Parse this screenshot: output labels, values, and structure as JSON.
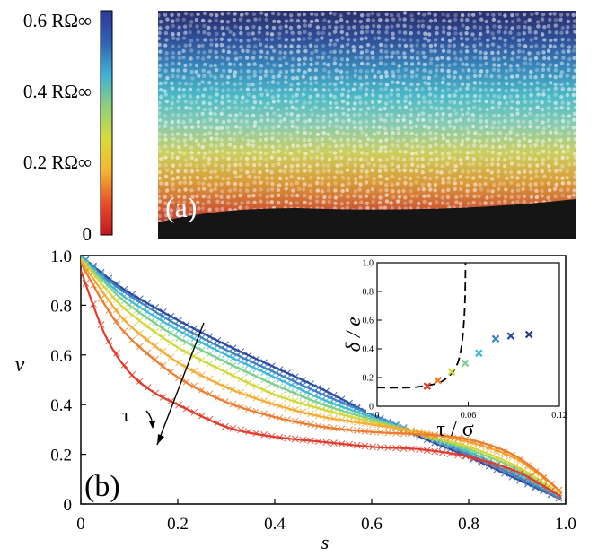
{
  "colorbar": {
    "labels": [
      "0.6 RΩ∞",
      "0.4 RΩ∞",
      "0.2 RΩ∞",
      "0"
    ],
    "stops": [
      "#2c3a98",
      "#2f63b5",
      "#3fb1d6",
      "#8fd07a",
      "#d8dc3a",
      "#f5b530",
      "#e8502a",
      "#c4161c"
    ]
  },
  "photo": {
    "panel_label": "(a)",
    "band_colors": [
      "#2a2f6e",
      "#2f52a0",
      "#3a8fc4",
      "#4fc2cf",
      "#8fd5b8",
      "#d6d862",
      "#e3a33a",
      "#d65a34",
      "#b52a2a"
    ]
  },
  "chart_data": [
    {
      "type": "line",
      "panel_label": "(b)",
      "xlabel": "s",
      "ylabel": "v",
      "xlim": [
        0,
        1
      ],
      "ylim": [
        0,
        1
      ],
      "xticks": [
        "0",
        "0.2",
        "0.4",
        "0.6",
        "0.8",
        "1.0"
      ],
      "yticks": [
        "0",
        "0.2",
        "0.4",
        "0.6",
        "0.8",
        "1.0"
      ],
      "arrow_label": "τ",
      "series": [
        {
          "color": "#2b4a9b",
          "points": [
            [
              0,
              1
            ],
            [
              0.05,
              0.92
            ],
            [
              0.1,
              0.85
            ],
            [
              0.2,
              0.74
            ],
            [
              0.3,
              0.64
            ],
            [
              0.4,
              0.55
            ],
            [
              0.5,
              0.46
            ],
            [
              0.6,
              0.36
            ],
            [
              0.7,
              0.27
            ],
            [
              0.8,
              0.19
            ],
            [
              0.9,
              0.1
            ],
            [
              0.99,
              0.02
            ]
          ]
        },
        {
          "color": "#3f7fc4",
          "points": [
            [
              0,
              1
            ],
            [
              0.05,
              0.91
            ],
            [
              0.1,
              0.84
            ],
            [
              0.2,
              0.72
            ],
            [
              0.3,
              0.62
            ],
            [
              0.4,
              0.53
            ],
            [
              0.5,
              0.44
            ],
            [
              0.6,
              0.36
            ],
            [
              0.7,
              0.28
            ],
            [
              0.8,
              0.2
            ],
            [
              0.9,
              0.11
            ],
            [
              0.99,
              0.02
            ]
          ]
        },
        {
          "color": "#40b8d8",
          "points": [
            [
              0,
              1
            ],
            [
              0.05,
              0.9
            ],
            [
              0.1,
              0.82
            ],
            [
              0.2,
              0.7
            ],
            [
              0.3,
              0.6
            ],
            [
              0.4,
              0.51
            ],
            [
              0.5,
              0.42
            ],
            [
              0.6,
              0.35
            ],
            [
              0.7,
              0.28
            ],
            [
              0.8,
              0.21
            ],
            [
              0.9,
              0.12
            ],
            [
              0.99,
              0.03
            ]
          ]
        },
        {
          "color": "#7ccf8a",
          "points": [
            [
              0,
              0.99
            ],
            [
              0.05,
              0.89
            ],
            [
              0.1,
              0.8
            ],
            [
              0.2,
              0.67
            ],
            [
              0.3,
              0.57
            ],
            [
              0.4,
              0.48
            ],
            [
              0.5,
              0.4
            ],
            [
              0.6,
              0.34
            ],
            [
              0.7,
              0.28
            ],
            [
              0.8,
              0.22
            ],
            [
              0.9,
              0.14
            ],
            [
              0.99,
              0.03
            ]
          ]
        },
        {
          "color": "#d2d83c",
          "points": [
            [
              0,
              0.99
            ],
            [
              0.05,
              0.87
            ],
            [
              0.1,
              0.77
            ],
            [
              0.2,
              0.63
            ],
            [
              0.3,
              0.53
            ],
            [
              0.4,
              0.44
            ],
            [
              0.5,
              0.38
            ],
            [
              0.6,
              0.33
            ],
            [
              0.7,
              0.28
            ],
            [
              0.8,
              0.23
            ],
            [
              0.9,
              0.15
            ],
            [
              0.99,
              0.04
            ]
          ]
        },
        {
          "color": "#f4ac34",
          "points": [
            [
              0,
              0.98
            ],
            [
              0.05,
              0.84
            ],
            [
              0.1,
              0.72
            ],
            [
              0.2,
              0.57
            ],
            [
              0.3,
              0.47
            ],
            [
              0.4,
              0.4
            ],
            [
              0.5,
              0.35
            ],
            [
              0.6,
              0.32
            ],
            [
              0.7,
              0.29
            ],
            [
              0.8,
              0.25
            ],
            [
              0.9,
              0.18
            ],
            [
              0.99,
              0.05
            ]
          ]
        },
        {
          "color": "#ee7b2e",
          "points": [
            [
              0,
              0.97
            ],
            [
              0.05,
              0.8
            ],
            [
              0.1,
              0.67
            ],
            [
              0.2,
              0.51
            ],
            [
              0.3,
              0.41
            ],
            [
              0.4,
              0.35
            ],
            [
              0.5,
              0.31
            ],
            [
              0.6,
              0.29
            ],
            [
              0.7,
              0.28
            ],
            [
              0.8,
              0.26
            ],
            [
              0.9,
              0.19
            ],
            [
              0.99,
              0.05
            ]
          ]
        },
        {
          "color": "#e33b2b",
          "points": [
            [
              0,
              0.94
            ],
            [
              0.05,
              0.68
            ],
            [
              0.1,
              0.53
            ],
            [
              0.15,
              0.45
            ],
            [
              0.2,
              0.4
            ],
            [
              0.3,
              0.31
            ],
            [
              0.4,
              0.27
            ],
            [
              0.5,
              0.25
            ],
            [
              0.6,
              0.23
            ],
            [
              0.7,
              0.22
            ],
            [
              0.8,
              0.19
            ],
            [
              0.9,
              0.13
            ],
            [
              0.99,
              0.03
            ]
          ]
        }
      ]
    },
    {
      "type": "scatter",
      "xlabel": "τ / σ",
      "ylabel": "δ / e",
      "xlim": [
        0,
        0.12
      ],
      "ylim": [
        0,
        1
      ],
      "xticks": [
        "0",
        "0.06",
        "0.12"
      ],
      "yticks": [
        "0",
        "0.2",
        "0.4",
        "0.6",
        "0.8",
        "1.0"
      ],
      "points": [
        {
          "x": 0.033,
          "y": 0.14,
          "color": "#e33b2b"
        },
        {
          "x": 0.04,
          "y": 0.18,
          "color": "#ee7b2e"
        },
        {
          "x": 0.049,
          "y": 0.24,
          "color": "#d2d83c"
        },
        {
          "x": 0.058,
          "y": 0.3,
          "color": "#7ccf8a"
        },
        {
          "x": 0.067,
          "y": 0.37,
          "color": "#40b8d8"
        },
        {
          "x": 0.078,
          "y": 0.47,
          "color": "#3f7fc4"
        },
        {
          "x": 0.088,
          "y": 0.49,
          "color": "#2b4a9b"
        },
        {
          "x": 0.1,
          "y": 0.5,
          "color": "#2b3a7b"
        }
      ],
      "curve": [
        [
          0.0,
          0.13
        ],
        [
          0.02,
          0.13
        ],
        [
          0.03,
          0.14
        ],
        [
          0.04,
          0.16
        ],
        [
          0.045,
          0.19
        ],
        [
          0.05,
          0.24
        ],
        [
          0.053,
          0.3
        ],
        [
          0.055,
          0.38
        ],
        [
          0.0565,
          0.5
        ],
        [
          0.0575,
          0.65
        ],
        [
          0.058,
          0.8
        ],
        [
          0.0582,
          1.0
        ]
      ]
    }
  ]
}
